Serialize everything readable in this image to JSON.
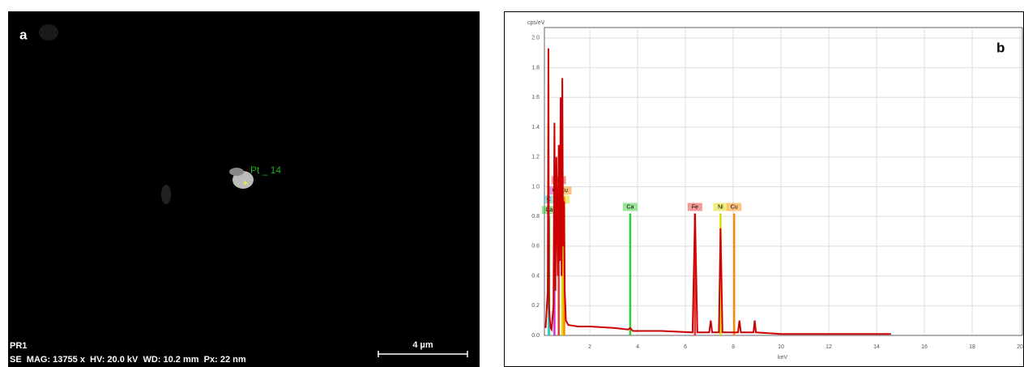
{
  "panel_a": {
    "label": "a",
    "sample": "PR1",
    "info": "SE  MAG: 13755 x  HV: 20.0 kV  WD: 10.2 mm  Px: 22 nm",
    "scale_bar": "4 µm",
    "point_label": "Pt _ 14"
  },
  "chart_data": {
    "type": "line",
    "panel_label": "b",
    "y_label": "cps/eV",
    "x_label": "keV",
    "color": "#cc0000",
    "grid": true,
    "x": [
      0.15,
      0.24,
      0.27,
      0.29,
      0.33,
      0.36,
      0.4,
      0.48,
      0.52,
      0.56,
      0.6,
      0.66,
      0.7,
      0.74,
      0.78,
      0.82,
      0.85,
      0.88,
      0.92,
      0.95,
      1.0,
      1.1,
      1.5,
      2.0,
      3.0,
      3.6,
      3.69,
      3.8,
      5.0,
      6.3,
      6.4,
      6.5,
      7.0,
      7.06,
      7.12,
      7.4,
      7.47,
      7.55,
      8.2,
      8.26,
      8.32,
      8.85,
      8.9,
      8.95,
      10.0,
      12.0,
      14.0,
      14.6
    ],
    "values": [
      0.05,
      0.3,
      1.93,
      0.2,
      0.1,
      0.05,
      0.04,
      0.2,
      1.43,
      0.3,
      1.2,
      0.4,
      1.28,
      0.5,
      1.6,
      0.4,
      1.73,
      0.6,
      0.9,
      0.3,
      0.1,
      0.07,
      0.06,
      0.06,
      0.05,
      0.04,
      0.05,
      0.03,
      0.03,
      0.02,
      0.82,
      0.02,
      0.02,
      0.1,
      0.02,
      0.02,
      0.72,
      0.02,
      0.02,
      0.1,
      0.02,
      0.02,
      0.1,
      0.02,
      0.01,
      0.01,
      0.01,
      0.01
    ],
    "markers": [
      {
        "label": "Ca",
        "x": 0.3,
        "height": 0.8,
        "color": "#33cc33"
      },
      {
        "label": "C",
        "x": 0.28,
        "height": 0.87,
        "color": "#33cccc"
      },
      {
        "label": "O",
        "x": 0.52,
        "height": 0.93,
        "color": "#cc33cc"
      },
      {
        "label": "Fe",
        "x": 0.7,
        "height": 1.0,
        "color": "#ee3333"
      },
      {
        "label": "Ni",
        "x": 0.85,
        "height": 0.87,
        "color": "#dddd00"
      },
      {
        "label": "Cu",
        "x": 0.93,
        "height": 0.93,
        "color": "#ff8800"
      },
      {
        "label": "Ca",
        "x": 3.69,
        "height": 0.82,
        "color": "#33cc33"
      },
      {
        "label": "Fe",
        "x": 6.4,
        "height": 0.82,
        "color": "#ee3333"
      },
      {
        "label": "Ni",
        "x": 7.47,
        "height": 0.82,
        "color": "#dddd00"
      },
      {
        "label": "Cu",
        "x": 8.04,
        "height": 0.82,
        "color": "#ff8800"
      }
    ],
    "xlim": [
      0.1,
      20.1
    ],
    "ylim": [
      0,
      2.07
    ],
    "xticks": [
      2,
      4,
      6,
      8,
      10,
      12,
      14,
      16,
      18,
      20
    ],
    "yticks": [
      {
        "value": 0,
        "label": "0.0"
      },
      {
        "value": 0.2,
        "label": "0.2"
      },
      {
        "value": 0.4,
        "label": "0.4"
      },
      {
        "value": 0.6,
        "label": "0.6"
      },
      {
        "value": 0.8,
        "label": "0.8"
      },
      {
        "value": 1.0,
        "label": "1.0"
      },
      {
        "value": 1.2,
        "label": "1.2"
      },
      {
        "value": 1.4,
        "label": "1.4"
      },
      {
        "value": 1.6,
        "label": "1.6"
      },
      {
        "value": 1.8,
        "label": "1.8"
      },
      {
        "value": 2.0,
        "label": "2.0"
      }
    ]
  }
}
